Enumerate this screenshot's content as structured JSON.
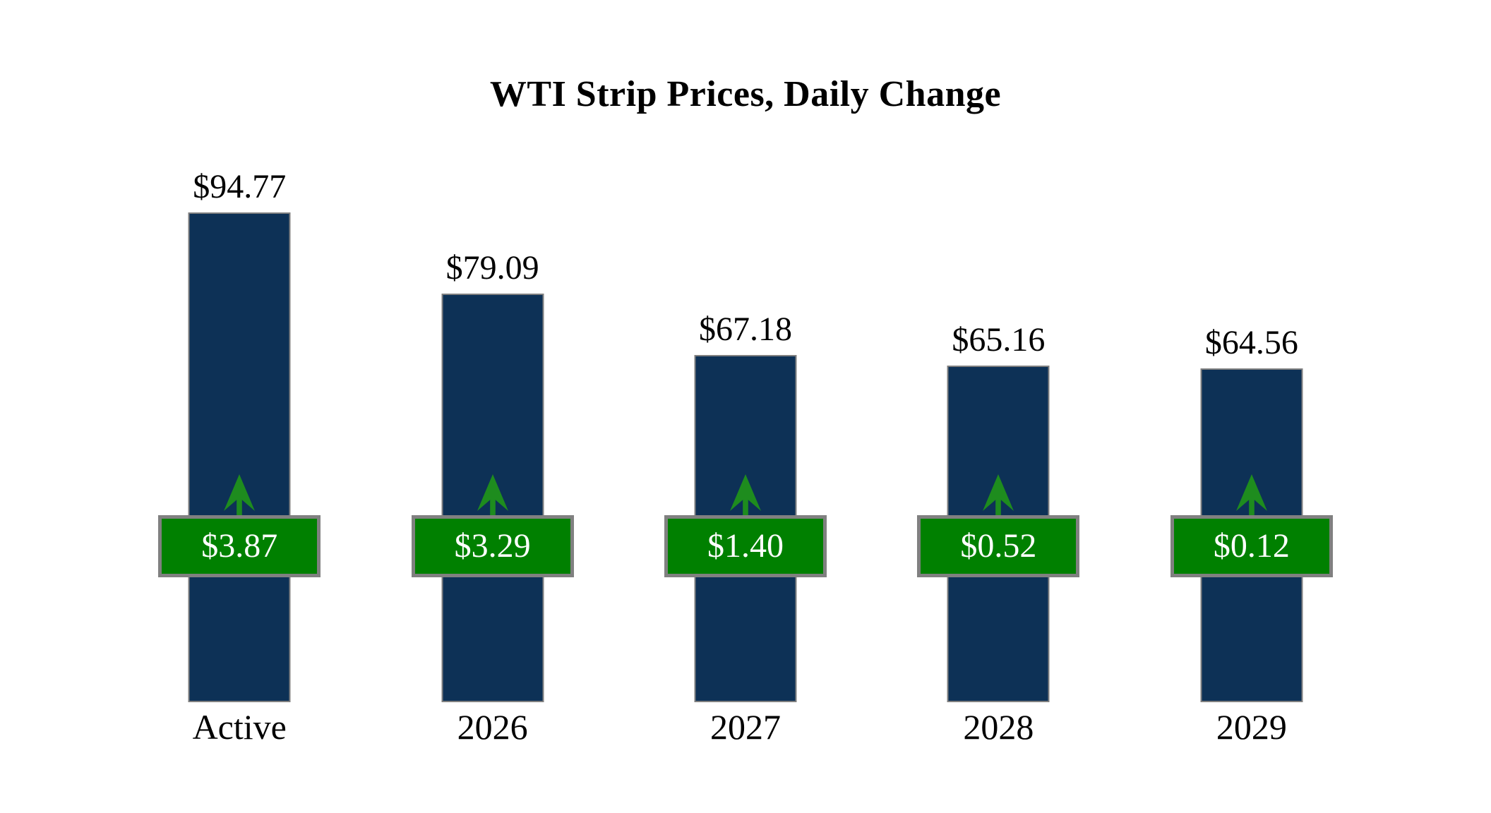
{
  "chart_data": {
    "type": "bar",
    "title": "WTI Strip Prices, Daily Change",
    "categories": [
      "Active",
      "2026",
      "2027",
      "2028",
      "2029"
    ],
    "series": [
      {
        "name": "Strip Price",
        "values": [
          94.77,
          79.09,
          67.18,
          65.16,
          64.56
        ],
        "labels": [
          "$94.77",
          "$79.09",
          "$67.18",
          "$65.16",
          "$64.56"
        ]
      },
      {
        "name": "Daily Change",
        "values": [
          3.87,
          3.29,
          1.4,
          0.52,
          0.12
        ],
        "labels": [
          "$3.87",
          "$3.29",
          "$1.40",
          "$0.52",
          "$0.12"
        ],
        "direction": "up"
      }
    ],
    "ylim": [
      0,
      100
    ],
    "grid": false,
    "legend": false,
    "axes_shown": false,
    "colors": {
      "bar_fill": "#0d3156",
      "bar_border": "#808080",
      "badge_fill": "#008000",
      "badge_border": "#808080",
      "badge_text": "#ffffff",
      "arrow": "#1e8c1e",
      "label_text": "#000000",
      "background": "#ffffff"
    }
  }
}
